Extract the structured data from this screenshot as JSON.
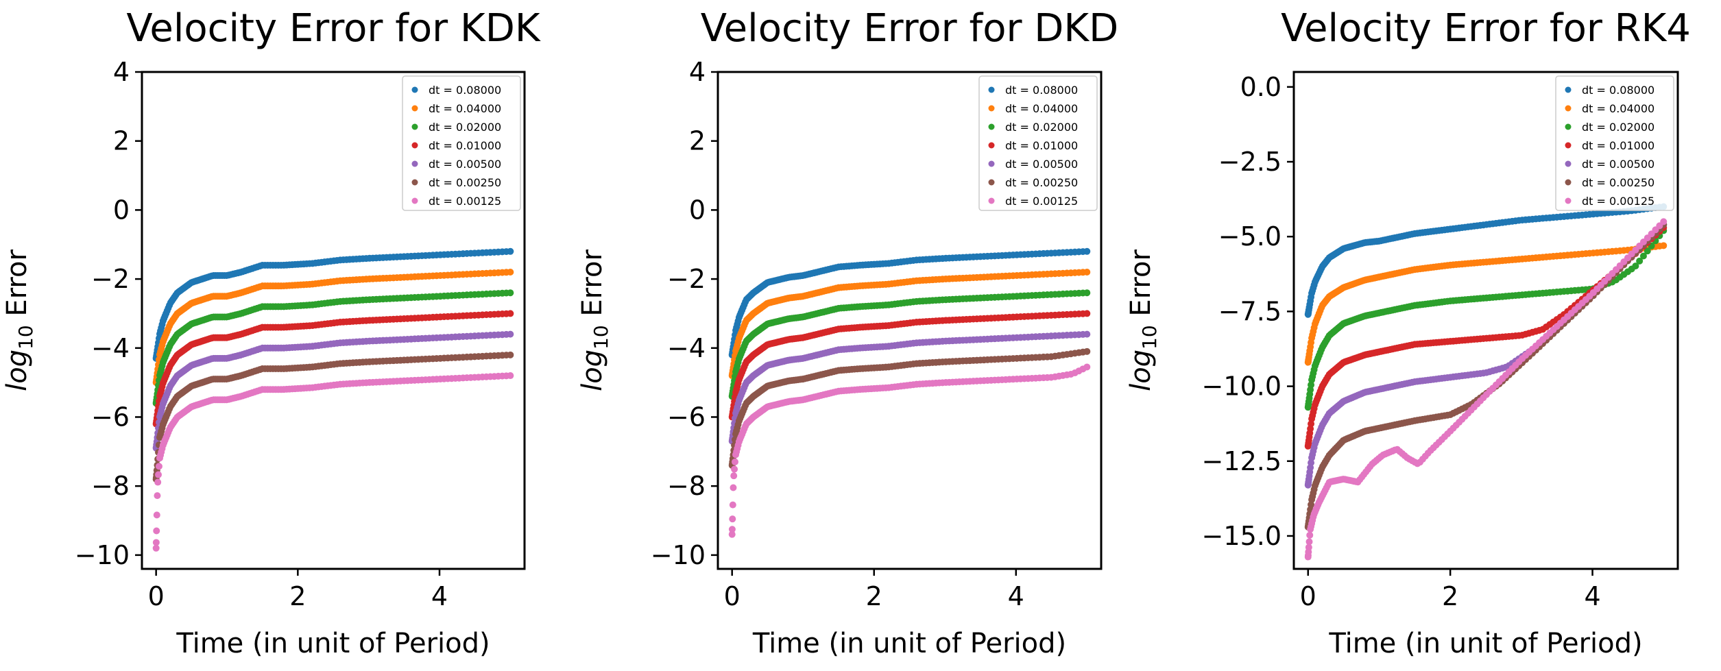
{
  "chart_data": [
    {
      "type": "scatter",
      "title": "Velocity Error for KDK",
      "xlabel": "Time (in unit of Period)",
      "ylabel_main": "log",
      "ylabel_sub": "10",
      "ylabel_tail": " Error",
      "xlim": [
        -0.2,
        5.2
      ],
      "ylim": [
        -10.4,
        4.0
      ],
      "xticks": [
        0,
        2,
        4
      ],
      "yticks": [
        4,
        2,
        0,
        -2,
        -4,
        -6,
        -8,
        -10
      ],
      "ytick_labels": [
        "4",
        "2",
        "0",
        "−2",
        "−4",
        "−6",
        "−8",
        "−10"
      ],
      "legend_position": "top-right",
      "series": [
        {
          "name": "dt = 0.08000",
          "color": "#1f77b4",
          "x": [
            0,
            0.05,
            0.1,
            0.2,
            0.3,
            0.5,
            0.8,
            1.0,
            1.2,
            1.5,
            1.8,
            2.2,
            2.6,
            3.0,
            3.5,
            4.0,
            4.5,
            5.0
          ],
          "y": [
            -4.3,
            -3.6,
            -3.2,
            -2.7,
            -2.4,
            -2.1,
            -1.9,
            -1.9,
            -1.8,
            -1.6,
            -1.6,
            -1.55,
            -1.45,
            -1.4,
            -1.35,
            -1.3,
            -1.25,
            -1.2
          ]
        },
        {
          "name": "dt = 0.04000",
          "color": "#ff7f0e",
          "x": [
            0,
            0.05,
            0.1,
            0.2,
            0.3,
            0.5,
            0.8,
            1.0,
            1.2,
            1.5,
            1.8,
            2.2,
            2.6,
            3.0,
            3.5,
            4.0,
            4.5,
            5.0
          ],
          "y": [
            -5.0,
            -4.2,
            -3.8,
            -3.3,
            -3.0,
            -2.7,
            -2.5,
            -2.5,
            -2.4,
            -2.2,
            -2.2,
            -2.15,
            -2.05,
            -2.0,
            -1.95,
            -1.9,
            -1.85,
            -1.8
          ]
        },
        {
          "name": "dt = 0.02000",
          "color": "#2ca02c",
          "x": [
            0,
            0.05,
            0.1,
            0.2,
            0.3,
            0.5,
            0.8,
            1.0,
            1.2,
            1.5,
            1.8,
            2.2,
            2.6,
            3.0,
            3.5,
            4.0,
            4.5,
            5.0
          ],
          "y": [
            -5.6,
            -4.8,
            -4.4,
            -3.9,
            -3.6,
            -3.3,
            -3.1,
            -3.1,
            -3.0,
            -2.8,
            -2.8,
            -2.75,
            -2.65,
            -2.6,
            -2.55,
            -2.5,
            -2.45,
            -2.4
          ]
        },
        {
          "name": "dt = 0.01000",
          "color": "#d62728",
          "x": [
            0,
            0.05,
            0.1,
            0.2,
            0.3,
            0.5,
            0.8,
            1.0,
            1.2,
            1.5,
            1.8,
            2.2,
            2.6,
            3.0,
            3.5,
            4.0,
            4.5,
            5.0
          ],
          "y": [
            -6.2,
            -5.4,
            -5.0,
            -4.5,
            -4.2,
            -3.9,
            -3.7,
            -3.7,
            -3.6,
            -3.4,
            -3.4,
            -3.35,
            -3.25,
            -3.2,
            -3.15,
            -3.1,
            -3.05,
            -3.0
          ]
        },
        {
          "name": "dt = 0.00500",
          "color": "#9467bd",
          "x": [
            0,
            0.05,
            0.1,
            0.2,
            0.3,
            0.5,
            0.8,
            1.0,
            1.2,
            1.5,
            1.8,
            2.2,
            2.6,
            3.0,
            3.5,
            4.0,
            4.5,
            5.0
          ],
          "y": [
            -6.9,
            -6.0,
            -5.6,
            -5.1,
            -4.8,
            -4.5,
            -4.3,
            -4.3,
            -4.2,
            -4.0,
            -4.0,
            -3.95,
            -3.85,
            -3.8,
            -3.75,
            -3.7,
            -3.65,
            -3.6
          ]
        },
        {
          "name": "dt = 0.00250",
          "color": "#8c564b",
          "x": [
            0,
            0.05,
            0.1,
            0.2,
            0.3,
            0.5,
            0.8,
            1.0,
            1.2,
            1.5,
            1.8,
            2.2,
            2.6,
            3.0,
            3.5,
            4.0,
            4.5,
            5.0
          ],
          "y": [
            -7.8,
            -6.6,
            -6.2,
            -5.7,
            -5.4,
            -5.1,
            -4.9,
            -4.9,
            -4.8,
            -4.6,
            -4.6,
            -4.55,
            -4.45,
            -4.4,
            -4.35,
            -4.3,
            -4.25,
            -4.2
          ]
        },
        {
          "name": "dt = 0.00125",
          "color": "#e377c2",
          "x": [
            0,
            0.02,
            0.05,
            0.1,
            0.2,
            0.3,
            0.5,
            0.8,
            1.0,
            1.2,
            1.5,
            1.8,
            2.2,
            2.6,
            3.0,
            3.5,
            4.0,
            4.5,
            5.0
          ],
          "y": [
            -9.8,
            -8.0,
            -7.2,
            -6.8,
            -6.3,
            -6.0,
            -5.7,
            -5.5,
            -5.5,
            -5.4,
            -5.2,
            -5.2,
            -5.15,
            -5.05,
            -5.0,
            -4.95,
            -4.9,
            -4.85,
            -4.8
          ]
        }
      ]
    },
    {
      "type": "scatter",
      "title": "Velocity Error for DKD",
      "xlabel": "Time (in unit of Period)",
      "ylabel_main": "log",
      "ylabel_sub": "10",
      "ylabel_tail": " Error",
      "xlim": [
        -0.2,
        5.2
      ],
      "ylim": [
        -10.4,
        4.0
      ],
      "xticks": [
        0,
        2,
        4
      ],
      "yticks": [
        4,
        2,
        0,
        -2,
        -4,
        -6,
        -8,
        -10
      ],
      "ytick_labels": [
        "4",
        "2",
        "0",
        "−2",
        "−4",
        "−6",
        "−8",
        "−10"
      ],
      "legend_position": "top-right",
      "series": [
        {
          "name": "dt = 0.08000",
          "color": "#1f77b4",
          "x": [
            0,
            0.05,
            0.1,
            0.2,
            0.3,
            0.5,
            0.8,
            1.0,
            1.2,
            1.5,
            1.8,
            2.2,
            2.6,
            3.0,
            3.5,
            4.0,
            4.5,
            5.0
          ],
          "y": [
            -4.2,
            -3.5,
            -3.1,
            -2.6,
            -2.4,
            -2.1,
            -1.95,
            -1.9,
            -1.8,
            -1.65,
            -1.6,
            -1.55,
            -1.45,
            -1.4,
            -1.35,
            -1.3,
            -1.25,
            -1.2
          ]
        },
        {
          "name": "dt = 0.04000",
          "color": "#ff7f0e",
          "x": [
            0,
            0.05,
            0.1,
            0.2,
            0.3,
            0.5,
            0.8,
            1.0,
            1.2,
            1.5,
            1.8,
            2.2,
            2.6,
            3.0,
            3.5,
            4.0,
            4.5,
            5.0
          ],
          "y": [
            -4.8,
            -4.1,
            -3.7,
            -3.2,
            -3.0,
            -2.7,
            -2.55,
            -2.5,
            -2.4,
            -2.25,
            -2.2,
            -2.15,
            -2.05,
            -2.0,
            -1.95,
            -1.9,
            -1.85,
            -1.8
          ]
        },
        {
          "name": "dt = 0.02000",
          "color": "#2ca02c",
          "x": [
            0,
            0.05,
            0.1,
            0.2,
            0.3,
            0.5,
            0.8,
            1.0,
            1.2,
            1.5,
            1.8,
            2.2,
            2.6,
            3.0,
            3.5,
            4.0,
            4.5,
            5.0
          ],
          "y": [
            -5.4,
            -4.7,
            -4.3,
            -3.8,
            -3.6,
            -3.3,
            -3.15,
            -3.1,
            -3.0,
            -2.85,
            -2.8,
            -2.75,
            -2.65,
            -2.6,
            -2.55,
            -2.5,
            -2.45,
            -2.4
          ]
        },
        {
          "name": "dt = 0.01000",
          "color": "#d62728",
          "x": [
            0,
            0.05,
            0.1,
            0.2,
            0.3,
            0.5,
            0.8,
            1.0,
            1.2,
            1.5,
            1.8,
            2.2,
            2.6,
            3.0,
            3.5,
            4.0,
            4.5,
            5.0
          ],
          "y": [
            -6.0,
            -5.3,
            -4.9,
            -4.4,
            -4.2,
            -3.9,
            -3.75,
            -3.7,
            -3.6,
            -3.45,
            -3.4,
            -3.35,
            -3.25,
            -3.2,
            -3.15,
            -3.1,
            -3.05,
            -3.0
          ]
        },
        {
          "name": "dt = 0.00500",
          "color": "#9467bd",
          "x": [
            0,
            0.05,
            0.1,
            0.2,
            0.3,
            0.5,
            0.8,
            1.0,
            1.2,
            1.5,
            1.8,
            2.2,
            2.6,
            3.0,
            3.5,
            4.0,
            4.5,
            5.0
          ],
          "y": [
            -6.7,
            -5.9,
            -5.5,
            -5.0,
            -4.8,
            -4.5,
            -4.35,
            -4.3,
            -4.2,
            -4.05,
            -4.0,
            -3.95,
            -3.85,
            -3.8,
            -3.75,
            -3.7,
            -3.65,
            -3.6
          ]
        },
        {
          "name": "dt = 0.00250",
          "color": "#8c564b",
          "x": [
            0,
            0.05,
            0.1,
            0.2,
            0.3,
            0.5,
            0.8,
            1.0,
            1.2,
            1.5,
            1.8,
            2.2,
            2.6,
            3.0,
            3.5,
            4.0,
            4.5,
            5.0
          ],
          "y": [
            -7.4,
            -6.5,
            -6.1,
            -5.6,
            -5.4,
            -5.1,
            -4.95,
            -4.9,
            -4.8,
            -4.65,
            -4.6,
            -4.55,
            -4.45,
            -4.4,
            -4.35,
            -4.3,
            -4.25,
            -4.1
          ]
        },
        {
          "name": "dt = 0.00125",
          "color": "#e377c2",
          "x": [
            0,
            0.02,
            0.05,
            0.1,
            0.2,
            0.3,
            0.5,
            0.8,
            1.0,
            1.2,
            1.5,
            1.8,
            2.2,
            2.6,
            3.0,
            3.5,
            4.0,
            4.5,
            4.8,
            5.0
          ],
          "y": [
            -9.4,
            -7.8,
            -7.1,
            -6.7,
            -6.2,
            -6.0,
            -5.7,
            -5.55,
            -5.5,
            -5.4,
            -5.25,
            -5.2,
            -5.15,
            -5.05,
            -5.0,
            -4.95,
            -4.9,
            -4.85,
            -4.75,
            -4.55
          ]
        }
      ]
    },
    {
      "type": "scatter",
      "title": "Velocity Error for RK4",
      "xlabel": "Time (in unit of Period)",
      "ylabel_main": "log",
      "ylabel_sub": "10",
      "ylabel_tail": " Error",
      "xlim": [
        -0.2,
        5.2
      ],
      "ylim": [
        -16.1,
        0.5
      ],
      "xticks": [
        0,
        2,
        4
      ],
      "yticks": [
        0,
        -2.5,
        -5,
        -7.5,
        -10,
        -12.5,
        -15
      ],
      "ytick_labels": [
        "0.0",
        "−2.5",
        "−5.0",
        "−7.5",
        "−10.0",
        "−12.5",
        "−15.0"
      ],
      "legend_position": "top-right",
      "series": [
        {
          "name": "dt = 0.08000",
          "color": "#1f77b4",
          "x": [
            0,
            0.05,
            0.1,
            0.2,
            0.3,
            0.5,
            0.8,
            1.0,
            1.2,
            1.5,
            2.0,
            2.5,
            3.0,
            3.5,
            4.0,
            4.5,
            5.0
          ],
          "y": [
            -7.6,
            -6.9,
            -6.5,
            -6.0,
            -5.7,
            -5.4,
            -5.2,
            -5.15,
            -5.05,
            -4.9,
            -4.75,
            -4.6,
            -4.45,
            -4.35,
            -4.25,
            -4.15,
            -4.0
          ]
        },
        {
          "name": "dt = 0.04000",
          "color": "#ff7f0e",
          "x": [
            0,
            0.05,
            0.1,
            0.2,
            0.3,
            0.5,
            0.8,
            1.0,
            1.2,
            1.5,
            2.0,
            2.5,
            3.0,
            3.5,
            4.0,
            4.5,
            5.0
          ],
          "y": [
            -9.2,
            -8.4,
            -7.9,
            -7.3,
            -7.0,
            -6.7,
            -6.45,
            -6.35,
            -6.25,
            -6.1,
            -5.95,
            -5.85,
            -5.75,
            -5.65,
            -5.55,
            -5.45,
            -5.3
          ]
        },
        {
          "name": "dt = 0.02000",
          "color": "#2ca02c",
          "x": [
            0,
            0.05,
            0.1,
            0.2,
            0.3,
            0.5,
            0.8,
            1.0,
            1.2,
            1.5,
            2.0,
            2.5,
            3.0,
            3.5,
            4.0,
            4.3,
            4.6,
            5.0
          ],
          "y": [
            -10.7,
            -9.8,
            -9.3,
            -8.7,
            -8.3,
            -7.9,
            -7.65,
            -7.55,
            -7.45,
            -7.3,
            -7.15,
            -7.05,
            -6.95,
            -6.85,
            -6.75,
            -6.5,
            -6.0,
            -4.8
          ]
        },
        {
          "name": "dt = 0.01000",
          "color": "#d62728",
          "x": [
            0,
            0.05,
            0.1,
            0.2,
            0.3,
            0.5,
            0.8,
            1.0,
            1.2,
            1.5,
            2.0,
            2.5,
            3.0,
            3.3,
            3.6,
            4.0,
            4.5,
            5.0
          ],
          "y": [
            -12.0,
            -11.1,
            -10.6,
            -10.0,
            -9.6,
            -9.2,
            -8.95,
            -8.85,
            -8.75,
            -8.6,
            -8.5,
            -8.4,
            -8.3,
            -8.1,
            -7.6,
            -6.8,
            -5.8,
            -4.7
          ]
        },
        {
          "name": "dt = 0.00500",
          "color": "#9467bd",
          "x": [
            0,
            0.05,
            0.1,
            0.2,
            0.3,
            0.5,
            0.8,
            1.0,
            1.2,
            1.5,
            2.0,
            2.5,
            2.8,
            3.2,
            3.6,
            4.0,
            4.5,
            5.0
          ],
          "y": [
            -13.3,
            -12.4,
            -11.9,
            -11.3,
            -10.9,
            -10.5,
            -10.2,
            -10.1,
            -10.0,
            -9.85,
            -9.7,
            -9.55,
            -9.35,
            -8.7,
            -7.8,
            -6.9,
            -5.8,
            -4.6
          ]
        },
        {
          "name": "dt = 0.00250",
          "color": "#8c564b",
          "x": [
            0,
            0.05,
            0.1,
            0.2,
            0.3,
            0.5,
            0.8,
            1.0,
            1.2,
            1.5,
            2.0,
            2.3,
            2.7,
            3.2,
            3.6,
            4.0,
            4.5,
            5.0
          ],
          "y": [
            -14.7,
            -13.8,
            -13.3,
            -12.7,
            -12.3,
            -11.8,
            -11.5,
            -11.4,
            -11.3,
            -11.15,
            -10.95,
            -10.6,
            -9.9,
            -8.8,
            -7.9,
            -7.0,
            -5.8,
            -4.6
          ]
        },
        {
          "name": "dt = 0.00125",
          "color": "#e377c2",
          "x": [
            0,
            0.03,
            0.08,
            0.15,
            0.3,
            0.5,
            0.7,
            0.9,
            1.05,
            1.25,
            1.4,
            1.55,
            1.7,
            2.0,
            2.5,
            3.0,
            3.5,
            4.0,
            4.5,
            5.0
          ],
          "y": [
            -15.7,
            -14.8,
            -14.3,
            -13.9,
            -13.2,
            -13.1,
            -13.2,
            -12.6,
            -12.3,
            -12.1,
            -12.4,
            -12.6,
            -12.2,
            -11.5,
            -10.3,
            -9.1,
            -8.0,
            -6.9,
            -5.7,
            -4.5
          ]
        }
      ]
    }
  ]
}
